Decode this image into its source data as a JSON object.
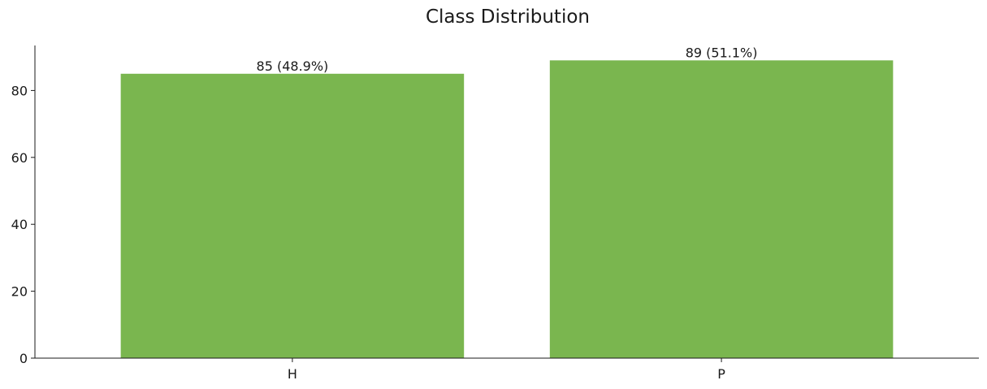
{
  "chart_data": {
    "type": "bar",
    "title": "Class Distribution",
    "xlabel": "",
    "ylabel": "",
    "categories": [
      "H",
      "P"
    ],
    "values": [
      85,
      89
    ],
    "data_labels": [
      "85 (48.9%)",
      "89 (51.1%)"
    ],
    "ylim": [
      0,
      93.45
    ],
    "yticks": [
      0,
      20,
      40,
      60,
      80
    ],
    "ytick_labels": [
      "0",
      "20",
      "40",
      "60",
      "80"
    ],
    "bar_color": "#7ab64f",
    "grid": false,
    "legend": "none"
  }
}
